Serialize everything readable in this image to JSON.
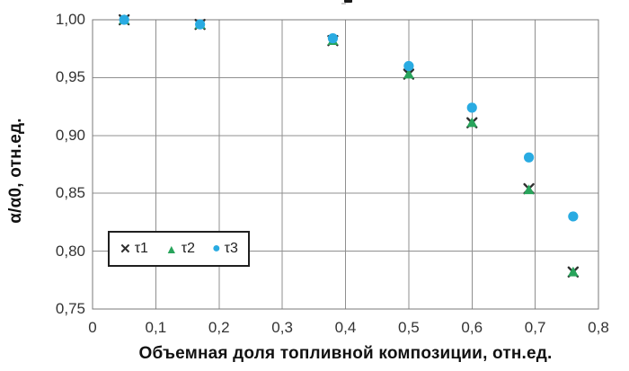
{
  "chart_data": {
    "type": "scatter",
    "title": "",
    "xlabel": "Объемная доля топливной композиции, отн.ед.",
    "ylabel": "α/α0, отн.ед.",
    "xlim": [
      0,
      0.8
    ],
    "ylim": [
      0.75,
      1.0
    ],
    "grid": true,
    "legend_position": "inside-bottom-left",
    "xticks": {
      "values": [
        0,
        0.1,
        0.2,
        0.3,
        0.4,
        0.5,
        0.6,
        0.7,
        0.8
      ],
      "labels": [
        "0",
        "0,1",
        "0,2",
        "0,3",
        "0,4",
        "0,5",
        "0,6",
        "0,7",
        "0,8"
      ]
    },
    "yticks": {
      "values": [
        0.75,
        0.8,
        0.85,
        0.9,
        0.95,
        1.0
      ],
      "labels": [
        "0,75",
        "0,80",
        "0,85",
        "0,90",
        "0,95",
        "1,00"
      ]
    },
    "series": [
      {
        "name": "τ1",
        "marker": "x-cross",
        "color": "#2e2e2e",
        "x": [
          0.05,
          0.17,
          0.38,
          0.5,
          0.6,
          0.69,
          0.76
        ],
        "y": [
          1.0,
          0.996,
          0.982,
          0.953,
          0.911,
          0.854,
          0.782
        ]
      },
      {
        "name": "τ2",
        "marker": "triangle",
        "color": "#28a45b",
        "x": [
          0.05,
          0.17,
          0.38,
          0.5,
          0.6,
          0.69,
          0.76
        ],
        "y": [
          1.0,
          0.996,
          0.982,
          0.953,
          0.911,
          0.853,
          0.782
        ]
      },
      {
        "name": "τ3",
        "marker": "circle",
        "color": "#29abe2",
        "x": [
          0.05,
          0.17,
          0.38,
          0.5,
          0.6,
          0.69,
          0.76
        ],
        "y": [
          1.0,
          0.996,
          0.984,
          0.96,
          0.924,
          0.881,
          0.83
        ]
      }
    ],
    "legend_glyphs": {
      "x": "✕",
      "triangle": "▲",
      "circle": "●"
    },
    "colors": {
      "grid": "#8f8f8f",
      "border": "#7a7a7a",
      "tick_label": "#333333",
      "axis_title": "#111111",
      "legend_border": "#1f1f1f"
    }
  }
}
